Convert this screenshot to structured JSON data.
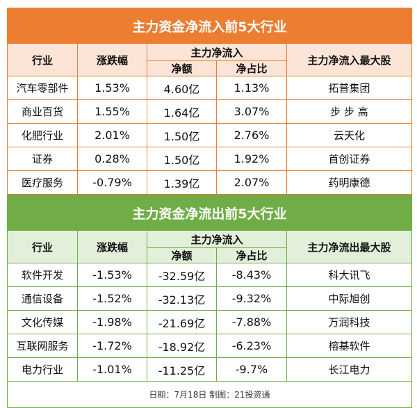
{
  "inflow": {
    "title": "主力资金净流入前5大行业",
    "headers": {
      "industry": "行业",
      "change": "涨跌幅",
      "netflow": "主力净流入",
      "amount": "净额",
      "ratio": "净占比",
      "top": "主力净流入最大股"
    },
    "rows": [
      {
        "industry": "汽车零部件",
        "change": "1.53%",
        "amount": "4.60亿",
        "ratio": "1.13%",
        "top": "拓普集团"
      },
      {
        "industry": "商业百货",
        "change": "1.55%",
        "amount": "1.64亿",
        "ratio": "3.07%",
        "top": "步 步 高"
      },
      {
        "industry": "化肥行业",
        "change": "2.01%",
        "amount": "1.50亿",
        "ratio": "2.76%",
        "top": "云天化"
      },
      {
        "industry": "证券",
        "change": "0.28%",
        "amount": "1.50亿",
        "ratio": "1.92%",
        "top": "首创证券"
      },
      {
        "industry": "医疗服务",
        "change": "-0.79%",
        "amount": "1.39亿",
        "ratio": "2.07%",
        "top": "药明康德"
      }
    ]
  },
  "outflow": {
    "title": "主力资金净流出前5大行业",
    "headers": {
      "industry": "行业",
      "change": "涨跌幅",
      "netflow": "主力净流入",
      "amount": "净额",
      "ratio": "净占比",
      "top": "主力净流出最大股"
    },
    "rows": [
      {
        "industry": "软件开发",
        "change": "-1.53%",
        "amount": "-32.59亿",
        "ratio": "-8.43%",
        "top": "科大讯飞"
      },
      {
        "industry": "通信设备",
        "change": "-1.52%",
        "amount": "-32.13亿",
        "ratio": "-9.32%",
        "top": "中际旭创"
      },
      {
        "industry": "文化传媒",
        "change": "-1.98%",
        "amount": "-21.69亿",
        "ratio": "-7.88%",
        "top": "万润科技"
      },
      {
        "industry": "互联网服务",
        "change": "-1.72%",
        "amount": "-18.92亿",
        "ratio": "-6.23%",
        "top": "榕基软件"
      },
      {
        "industry": "电力行业",
        "change": "-1.01%",
        "amount": "-11.25亿",
        "ratio": "-9.7%",
        "top": "长江电力"
      }
    ]
  },
  "footer": "日期：7月18日 制图：21投资通",
  "colors": {
    "inflow": "#ED7D31",
    "outflow": "#70AD47"
  }
}
